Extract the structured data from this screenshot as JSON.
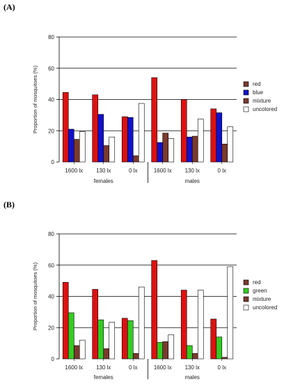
{
  "chart_data": [
    {
      "panel_label": "(A)",
      "type": "bar",
      "ylabel": "Proportion of mosquitoes (%)",
      "ylim": [
        0,
        80
      ],
      "yticks": [
        0,
        20,
        40,
        60,
        80
      ],
      "grid": "horizontal",
      "legend_position": "right",
      "categories": [
        "1600 lx",
        "130 lx",
        "0 lx",
        "1600 lx",
        "130 lx",
        "0 lx"
      ],
      "groups": [
        {
          "label": "females",
          "span": [
            0,
            2
          ]
        },
        {
          "label": "males",
          "span": [
            3,
            5
          ]
        }
      ],
      "series": [
        {
          "name": "red",
          "color": "#dd1111",
          "values": [
            44.5,
            43,
            29,
            54,
            40,
            34
          ]
        },
        {
          "name": "blue",
          "color": "#1111cc",
          "values": [
            21,
            30.5,
            28.5,
            12.5,
            16,
            31.5
          ]
        },
        {
          "name": "mixture",
          "color": "#7a3a2e",
          "values": [
            14.5,
            10.5,
            4,
            18.5,
            16.5,
            11.5
          ]
        },
        {
          "name": "uncolored",
          "color": "#ffffff",
          "values": [
            19.5,
            16,
            37.5,
            15,
            27.5,
            22.5
          ]
        }
      ],
      "legend_swatch_colors": [
        "#7a3a2e",
        "#1111cc",
        "#7a3a2e",
        "#ffffff"
      ]
    },
    {
      "panel_label": "(B)",
      "type": "bar",
      "ylabel": "Proportion of mosquitoes (%)",
      "ylim": [
        0,
        80
      ],
      "yticks": [
        0,
        20,
        40,
        60,
        80
      ],
      "grid": "horizontal",
      "legend_position": "right",
      "categories": [
        "1600 lx",
        "130 lx",
        "0 lx",
        "1600 lx",
        "130 lx",
        "0 lx"
      ],
      "groups": [
        {
          "label": "females",
          "span": [
            0,
            2
          ]
        },
        {
          "label": "males",
          "span": [
            3,
            5
          ]
        }
      ],
      "series": [
        {
          "name": "red",
          "color": "#dd1111",
          "values": [
            49,
            44.5,
            26,
            63,
            44,
            25.5
          ]
        },
        {
          "name": "green",
          "color": "#33cc22",
          "values": [
            29.5,
            25,
            24.5,
            10.5,
            8.5,
            14
          ]
        },
        {
          "name": "mixture",
          "color": "#7a3a2e",
          "values": [
            8.5,
            6.5,
            3.5,
            11,
            3.5,
            1
          ]
        },
        {
          "name": "uncolored",
          "color": "#ffffff",
          "values": [
            12,
            23.5,
            46,
            15.5,
            44,
            59
          ]
        }
      ],
      "legend_swatch_colors": [
        "#7a3a2e",
        "#33cc22",
        "#7a3a2e",
        "#ffffff"
      ]
    }
  ]
}
